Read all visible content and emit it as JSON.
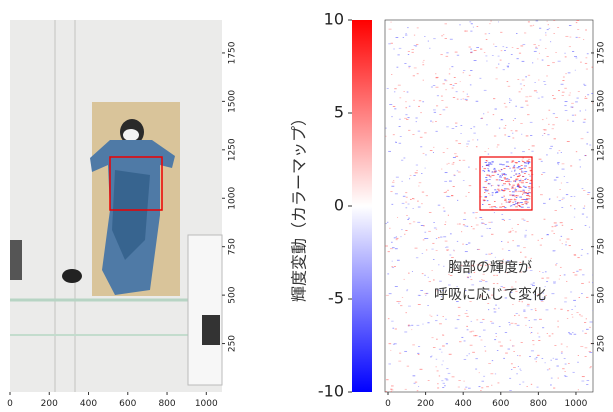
{
  "photo_panel": {
    "xlim": [
      0,
      1080
    ],
    "ylim": [
      0,
      1920
    ],
    "xticks": [
      0,
      200,
      400,
      600,
      800,
      1000
    ],
    "yticks": [
      250,
      500,
      750,
      1000,
      1250,
      1500,
      1750
    ]
  },
  "colorbar": {
    "label": "輝度変動（カラーマップ）",
    "lim": [
      -10,
      10
    ],
    "ticks": [
      -10,
      -5,
      0,
      5,
      10
    ],
    "colors": [
      "#0000ff",
      "#ffffff",
      "#ff0000"
    ]
  },
  "diff_panel": {
    "xlim": [
      0,
      1080
    ],
    "ylim": [
      0,
      1920
    ],
    "xticks": [
      0,
      200,
      400,
      600,
      800,
      1000
    ],
    "yticks": [
      250,
      500,
      750,
      1000,
      1250,
      1500,
      1750
    ],
    "annotation": [
      "胸部の輝度が",
      "呼吸に応じて変化"
    ]
  }
}
